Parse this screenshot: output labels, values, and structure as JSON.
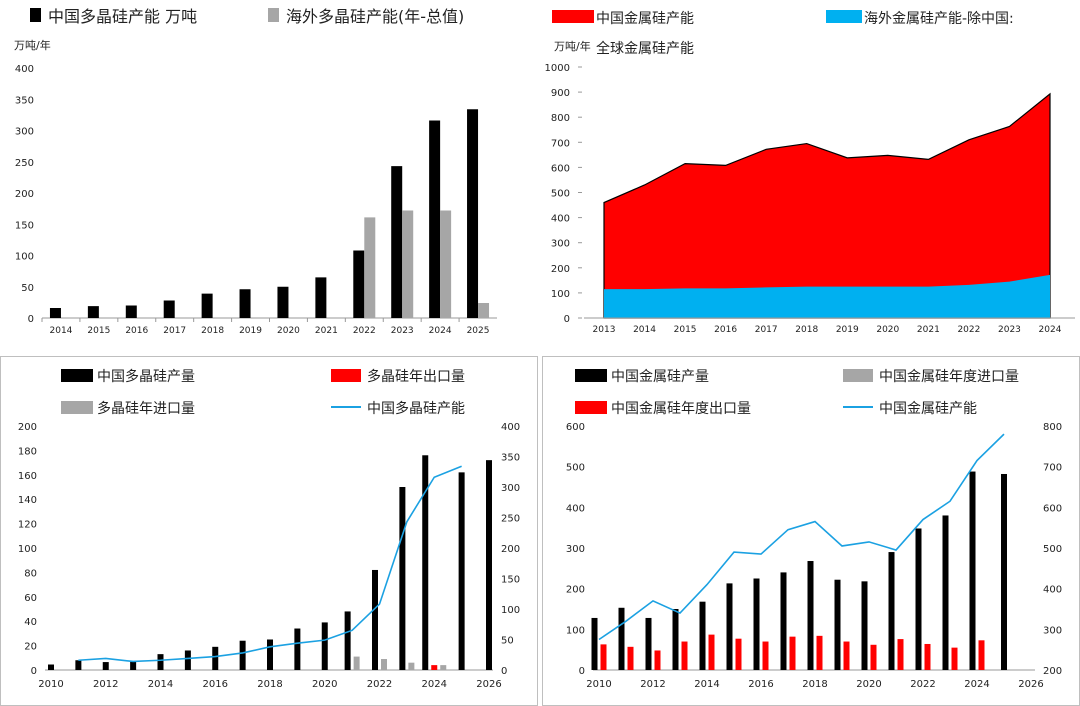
{
  "colors": {
    "black": "#000000",
    "gray": "#a6a6a6",
    "red": "#ff0000",
    "blue": "#00b0f0",
    "line": "#1ba1e2"
  },
  "chart_data": [
    {
      "id": "p1",
      "type": "bar",
      "unit": "万吨/年",
      "categories": [
        "2014",
        "2015",
        "2016",
        "2017",
        "2018",
        "2019",
        "2020",
        "2021",
        "2022",
        "2023",
        "2024",
        "2025"
      ],
      "series": [
        {
          "name": "中国多晶硅产能 万吨",
          "color": "#000000",
          "values": [
            16,
            19,
            20,
            28,
            39,
            46,
            50,
            65,
            108,
            243,
            316,
            334
          ]
        },
        {
          "name": "海外多晶硅产能(年-总值)",
          "color": "#a6a6a6",
          "values": [
            null,
            null,
            null,
            null,
            null,
            null,
            null,
            null,
            161,
            172,
            172,
            24
          ]
        }
      ],
      "ylim": [
        0,
        400
      ],
      "yticks": [
        0,
        50,
        100,
        150,
        200,
        250,
        300,
        350,
        400
      ],
      "legend": "top"
    },
    {
      "id": "p2",
      "type": "area",
      "unit": "万吨/年",
      "x": [
        "2013",
        "2014",
        "2015",
        "2016",
        "2017",
        "2018",
        "2019",
        "2020",
        "2021",
        "2022",
        "2023",
        "2024"
      ],
      "series": [
        {
          "name": "中国金属硅产能",
          "color": "#ff0000",
          "values": [
            460,
            530,
            615,
            608,
            672,
            695,
            638,
            648,
            632,
            710,
            763,
            893
          ]
        },
        {
          "name": "海外金属硅产能-除中国:全球金属硅产能",
          "color": "#00b0f0",
          "values": [
            115,
            115,
            118,
            118,
            122,
            125,
            125,
            125,
            125,
            132,
            145,
            172
          ]
        }
      ],
      "ylim": [
        0,
        1000
      ],
      "yticks": [
        0,
        100,
        200,
        300,
        400,
        500,
        600,
        700,
        800,
        900,
        1000
      ],
      "legend": "top"
    },
    {
      "id": "p3",
      "type": "bar",
      "x_ticks": [
        "2010",
        "2012",
        "2014",
        "2016",
        "2018",
        "2020",
        "2022",
        "2024",
        "2026"
      ],
      "years": [
        2010,
        2011,
        2012,
        2013,
        2014,
        2015,
        2016,
        2017,
        2018,
        2019,
        2020,
        2021,
        2022,
        2023,
        2024,
        2025,
        2026
      ],
      "series": [
        {
          "name": "中国多晶硅产量",
          "color": "#000000",
          "axis": "left",
          "values": [
            4.5,
            8,
            6.5,
            7,
            13,
            16,
            19,
            24,
            25,
            34,
            39,
            48,
            82,
            150,
            176,
            162,
            172
          ]
        },
        {
          "name": "多晶硅年出口量",
          "color": "#ff0000",
          "axis": "left",
          "values": [
            null,
            null,
            null,
            null,
            null,
            null,
            null,
            null,
            null,
            null,
            null,
            null,
            null,
            null,
            4,
            null,
            null
          ]
        },
        {
          "name": "多晶硅年进口量",
          "color": "#a6a6a6",
          "axis": "left",
          "values": [
            null,
            null,
            null,
            null,
            null,
            null,
            null,
            null,
            null,
            null,
            null,
            11,
            9,
            6,
            4,
            null,
            null
          ]
        },
        {
          "name": "中国多晶硅产能",
          "color": "#1ba1e2",
          "axis": "right",
          "type": "line",
          "values": [
            null,
            16,
            19,
            14,
            16,
            19,
            22,
            28,
            38,
            44,
            49,
            65,
            108,
            243,
            316,
            334,
            null
          ]
        }
      ],
      "ylim_left": [
        0,
        200
      ],
      "yticks_left": [
        0,
        20,
        40,
        60,
        80,
        100,
        120,
        140,
        160,
        180,
        200
      ],
      "ylim_right": [
        0,
        400
      ],
      "yticks_right": [
        0,
        50,
        100,
        150,
        200,
        250,
        300,
        350,
        400
      ],
      "legend": "top"
    },
    {
      "id": "p4",
      "type": "bar",
      "x_ticks": [
        "2010",
        "2012",
        "2014",
        "2016",
        "2018",
        "2020",
        "2022",
        "2024",
        "2026"
      ],
      "years": [
        2010,
        2011,
        2012,
        2013,
        2014,
        2015,
        2016,
        2017,
        2018,
        2019,
        2020,
        2021,
        2022,
        2023,
        2024,
        2025,
        2026
      ],
      "series": [
        {
          "name": "中国金属硅产量",
          "color": "#000000",
          "axis": "left",
          "values": [
            128,
            153,
            128,
            150,
            168,
            213,
            225,
            240,
            268,
            222,
            218,
            290,
            348,
            380,
            488,
            482,
            null
          ]
        },
        {
          "name": "中国金属硅年度进口量",
          "color": "#a6a6a6",
          "axis": "left",
          "values": [
            null,
            null,
            null,
            null,
            null,
            null,
            null,
            null,
            null,
            null,
            null,
            null,
            null,
            null,
            null,
            null,
            null
          ]
        },
        {
          "name": "中国金属硅年度出口量",
          "color": "#ff0000",
          "axis": "left",
          "values": [
            63,
            57,
            48,
            70,
            87,
            77,
            70,
            82,
            84,
            70,
            62,
            76,
            64,
            55,
            73,
            null,
            null
          ]
        },
        {
          "name": "中国金属硅产能",
          "color": "#1ba1e2",
          "axis": "right",
          "type": "line",
          "values": [
            275,
            320,
            370,
            340,
            410,
            490,
            485,
            545,
            565,
            505,
            515,
            495,
            570,
            615,
            715,
            780,
            null
          ]
        }
      ],
      "ylim_left": [
        0,
        600
      ],
      "yticks_left": [
        0,
        100,
        200,
        300,
        400,
        500,
        600
      ],
      "ylim_right": [
        200,
        800
      ],
      "yticks_right": [
        200,
        300,
        400,
        500,
        600,
        700,
        800
      ],
      "legend": "top"
    }
  ]
}
